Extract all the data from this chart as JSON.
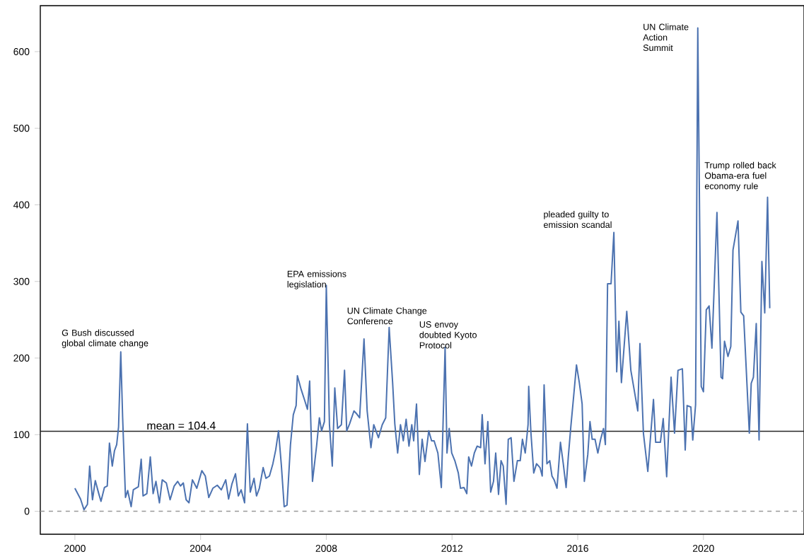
{
  "chart_data": {
    "type": "line",
    "x": [
      2000.0,
      2000.18,
      2000.29,
      2000.4,
      2000.47,
      2000.56,
      2000.65,
      2000.76,
      2000.83,
      2000.94,
      2001.03,
      2001.1,
      2001.19,
      2001.26,
      2001.33,
      2001.39,
      2001.46,
      2001.52,
      2001.61,
      2001.68,
      2001.79,
      2001.86,
      2002.02,
      2002.11,
      2002.17,
      2002.29,
      2002.4,
      2002.49,
      2002.58,
      2002.69,
      2002.78,
      2002.91,
      2003.03,
      2003.16,
      2003.27,
      2003.36,
      2003.45,
      2003.54,
      2003.63,
      2003.74,
      2003.88,
      2004.04,
      2004.15,
      2004.26,
      2004.39,
      2004.53,
      2004.66,
      2004.8,
      2004.89,
      2005.0,
      2005.11,
      2005.2,
      2005.29,
      2005.4,
      2005.49,
      2005.58,
      2005.7,
      2005.78,
      2005.87,
      2005.99,
      2006.08,
      2006.19,
      2006.3,
      2006.39,
      2006.48,
      2006.57,
      2006.66,
      2006.75,
      2006.86,
      2006.95,
      2007.04,
      2007.08,
      2007.2,
      2007.31,
      2007.4,
      2007.47,
      2007.56,
      2007.69,
      2007.78,
      2007.85,
      2007.94,
      2008.0,
      2008.1,
      2008.19,
      2008.27,
      2008.36,
      2008.48,
      2008.58,
      2008.65,
      2008.74,
      2008.88,
      2008.97,
      2009.06,
      2009.2,
      2009.3,
      2009.42,
      2009.51,
      2009.66,
      2009.78,
      2009.89,
      2010.0,
      2010.11,
      2010.18,
      2010.27,
      2010.36,
      2010.45,
      2010.54,
      2010.63,
      2010.72,
      2010.78,
      2010.87,
      2010.96,
      2011.05,
      2011.14,
      2011.26,
      2011.35,
      2011.43,
      2011.55,
      2011.66,
      2011.78,
      2011.84,
      2011.91,
      2011.99,
      2012.09,
      2012.2,
      2012.27,
      2012.38,
      2012.47,
      2012.53,
      2012.62,
      2012.71,
      2012.8,
      2012.91,
      2012.96,
      2013.05,
      2013.14,
      2013.23,
      2013.32,
      2013.39,
      2013.48,
      2013.56,
      2013.63,
      2013.72,
      2013.79,
      2013.88,
      2013.97,
      2014.08,
      2014.17,
      2014.24,
      2014.33,
      2014.42,
      2014.44,
      2014.51,
      2014.6,
      2014.69,
      2014.8,
      2014.87,
      2014.93,
      2015.02,
      2015.11,
      2015.18,
      2015.25,
      2015.34,
      2015.45,
      2015.54,
      2015.63,
      2015.7,
      2015.78,
      2015.87,
      2015.96,
      2016.05,
      2016.14,
      2016.21,
      2016.32,
      2016.39,
      2016.46,
      2016.55,
      2016.64,
      2016.73,
      2016.82,
      2016.88,
      2016.95,
      2017.06,
      2017.15,
      2017.24,
      2017.31,
      2017.39,
      2017.56,
      2017.69,
      2017.91,
      2017.98,
      2018.09,
      2018.23,
      2018.41,
      2018.48,
      2018.63,
      2018.72,
      2018.83,
      2018.97,
      2019.08,
      2019.19,
      2019.33,
      2019.42,
      2019.48,
      2019.6,
      2019.66,
      2019.75,
      2019.82,
      2019.93,
      2020.0,
      2020.09,
      2020.18,
      2020.27,
      2020.43,
      2020.56,
      2020.61,
      2020.67,
      2020.78,
      2020.87,
      2020.94,
      2021.1,
      2021.19,
      2021.28,
      2021.46,
      2021.52,
      2021.59,
      2021.68,
      2021.77,
      2021.86,
      2021.95,
      2022.04,
      2022.11
    ],
    "values": [
      30,
      16,
      2,
      9,
      59,
      15,
      40,
      23,
      13,
      31,
      33,
      89,
      59,
      79,
      87,
      110,
      208,
      122,
      18,
      27,
      6,
      28,
      32,
      68,
      20,
      23,
      71,
      23,
      39,
      11,
      41,
      37,
      15,
      33,
      39,
      33,
      37,
      15,
      11,
      41,
      30,
      53,
      46,
      18,
      30,
      34,
      28,
      41,
      16,
      36,
      49,
      20,
      28,
      11,
      114,
      25,
      43,
      20,
      30,
      57,
      43,
      46,
      62,
      80,
      105,
      60,
      6,
      8,
      87,
      126,
      138,
      177,
      159,
      145,
      133,
      170,
      39,
      85,
      122,
      105,
      117,
      295,
      113,
      59,
      161,
      108,
      113,
      184,
      105,
      114,
      131,
      127,
      122,
      225,
      131,
      83,
      113,
      96,
      113,
      122,
      240,
      168,
      114,
      76,
      113,
      92,
      120,
      85,
      113,
      92,
      140,
      48,
      94,
      65,
      105,
      92,
      92,
      76,
      31,
      214,
      76,
      108,
      76,
      66,
      50,
      30,
      31,
      23,
      71,
      59,
      76,
      85,
      83,
      126,
      62,
      117,
      25,
      39,
      76,
      22,
      66,
      59,
      9,
      94,
      96,
      39,
      66,
      66,
      94,
      76,
      113,
      163,
      103,
      50,
      62,
      57,
      46,
      165,
      62,
      66,
      46,
      41,
      30,
      90,
      62,
      31,
      71,
      110,
      150,
      191,
      168,
      140,
      39,
      74,
      117,
      94,
      94,
      76,
      94,
      108,
      87,
      297,
      297,
      364,
      182,
      248,
      168,
      261,
      184,
      131,
      219,
      102,
      52,
      146,
      90,
      90,
      121,
      45,
      175,
      102,
      184,
      186,
      80,
      138,
      136,
      93,
      139,
      631,
      163,
      156,
      263,
      268,
      213,
      390,
      175,
      173,
      222,
      202,
      215,
      341,
      379,
      260,
      255,
      102,
      167,
      175,
      245,
      93,
      326,
      259,
      410,
      265
    ],
    "color": "#4c72b0",
    "xlim": [
      1998.9,
      2023.2
    ],
    "ylim": [
      -30,
      660
    ],
    "xticks": [
      2000,
      2004,
      2008,
      2012,
      2016,
      2020
    ],
    "yticks": [
      0,
      100,
      200,
      300,
      400,
      500,
      600
    ],
    "ref_lines": [
      {
        "axis": "y",
        "value": 104.4,
        "label": "mean = 104.4",
        "color": "#262626",
        "line_style": "solid"
      },
      {
        "axis": "y",
        "value": 0,
        "color": "#999999",
        "line_style": "dashed"
      }
    ],
    "annotations": [
      {
        "text": "G Bush discussed global climate change",
        "x": 2001.46,
        "y": 208
      },
      {
        "text": "EPA emissions legislation",
        "x": 2008.0,
        "y": 295
      },
      {
        "text": "UN Climate Change Conference",
        "x": 2010.0,
        "y": 240
      },
      {
        "text": "US envoy doubted Kyoto Protocol",
        "x": 2011.78,
        "y": 214
      },
      {
        "text": "pleaded guilty to emission scandal",
        "x": 2017.15,
        "y": 364
      },
      {
        "text": "UN Climate Action Summit",
        "x": 2019.82,
        "y": 631
      },
      {
        "text": "Trump rolled back Obama-era fuel economy rule",
        "x": 2020.43,
        "y": 390
      }
    ],
    "grid": false,
    "marker": "none",
    "line_style": "solid"
  }
}
